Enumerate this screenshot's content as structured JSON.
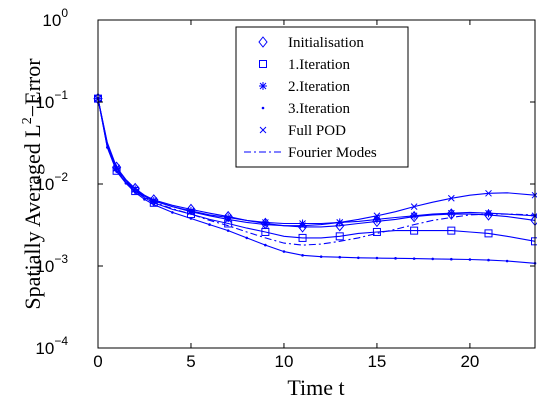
{
  "chart_data": {
    "type": "line",
    "xlabel": "Time t",
    "ylabel": {
      "base": "Spatially Averaged L",
      "sup": "2",
      "rest": "−Error"
    },
    "xlim": [
      0,
      23.5
    ],
    "ylim": [
      0.0001,
      1
    ],
    "yscale": "log",
    "xticks": [
      0,
      5,
      10,
      15,
      20
    ],
    "yticks": [
      {
        "value": 0.0001,
        "base": "10",
        "exp": "−4"
      },
      {
        "value": 0.001,
        "base": "10",
        "exp": "−3"
      },
      {
        "value": 0.01,
        "base": "10",
        "exp": "−2"
      },
      {
        "value": 0.1,
        "base": "10",
        "exp": "−1"
      },
      {
        "value": 1,
        "base": "10",
        "exp": "0"
      }
    ],
    "grid": false,
    "legend_position": "top-center",
    "color": "#0000ff",
    "series": [
      {
        "name": "Initialisation",
        "marker": "diamond",
        "linestyle": "solid",
        "x": [
          0,
          0.5,
          1,
          1.5,
          2,
          2.5,
          3,
          4,
          5,
          6,
          7,
          8,
          9,
          10,
          11,
          12,
          13,
          14,
          15,
          16,
          17,
          18,
          19,
          20,
          21,
          22,
          23.5
        ],
        "y": [
          0.11,
          0.032,
          0.016,
          0.0113,
          0.0088,
          0.0073,
          0.0064,
          0.0055,
          0.0049,
          0.0044,
          0.004,
          0.0036,
          0.0033,
          0.0031,
          0.003,
          0.003,
          0.0031,
          0.0033,
          0.0035,
          0.0037,
          0.004,
          0.0042,
          0.0043,
          0.0043,
          0.0042,
          0.004,
          0.0036
        ]
      },
      {
        "name": "1.Iteration",
        "marker": "square",
        "linestyle": "solid",
        "x": [
          0,
          0.5,
          1,
          1.5,
          2,
          2.5,
          3,
          4,
          5,
          6,
          7,
          8,
          9,
          10,
          11,
          12,
          13,
          14,
          15,
          16,
          17,
          18,
          19,
          20,
          21,
          22,
          23.5
        ],
        "y": [
          0.11,
          0.028,
          0.0145,
          0.0105,
          0.0082,
          0.0068,
          0.0059,
          0.0049,
          0.0043,
          0.0037,
          0.0033,
          0.0029,
          0.0026,
          0.0023,
          0.0022,
          0.0022,
          0.0023,
          0.0025,
          0.0026,
          0.0027,
          0.0027,
          0.0027,
          0.0027,
          0.0026,
          0.0025,
          0.0023,
          0.002
        ]
      },
      {
        "name": "2.Iteration",
        "marker": "star",
        "linestyle": "solid",
        "x": [
          0,
          0.5,
          1,
          1.5,
          2,
          2.5,
          3,
          4,
          5,
          6,
          7,
          8,
          9,
          10,
          11,
          12,
          13,
          14,
          15,
          16,
          17,
          18,
          19,
          20,
          21,
          22,
          23.5
        ],
        "y": [
          0.11,
          0.03,
          0.0155,
          0.011,
          0.0086,
          0.0071,
          0.0062,
          0.0053,
          0.0047,
          0.0042,
          0.0039,
          0.0036,
          0.0034,
          0.0033,
          0.0033,
          0.0033,
          0.0034,
          0.0035,
          0.0037,
          0.0039,
          0.0041,
          0.0043,
          0.0044,
          0.0045,
          0.0044,
          0.0043,
          0.0041
        ]
      },
      {
        "name": "3.Iteration",
        "marker": "dot",
        "linestyle": "solid",
        "x": [
          0,
          0.5,
          1,
          1.5,
          2,
          2.5,
          3,
          4,
          5,
          6,
          7,
          8,
          9,
          10,
          11,
          12,
          13,
          14,
          15,
          16,
          17,
          18,
          19,
          20,
          21,
          22,
          23.5
        ],
        "y": [
          0.11,
          0.028,
          0.0142,
          0.0102,
          0.0079,
          0.0065,
          0.0056,
          0.0045,
          0.0038,
          0.0032,
          0.0027,
          0.0022,
          0.0018,
          0.0015,
          0.00135,
          0.0013,
          0.00128,
          0.00126,
          0.00125,
          0.00124,
          0.00123,
          0.00122,
          0.00121,
          0.0012,
          0.00118,
          0.00115,
          0.00108
        ]
      },
      {
        "name": "Full POD",
        "marker": "x",
        "linestyle": "solid",
        "x": [
          0,
          0.5,
          1,
          1.5,
          2,
          2.5,
          3,
          4,
          5,
          6,
          7,
          8,
          9,
          10,
          11,
          12,
          13,
          14,
          15,
          16,
          17,
          18,
          19,
          20,
          21,
          22,
          23.5
        ],
        "y": [
          0.11,
          0.031,
          0.0158,
          0.0112,
          0.0087,
          0.0072,
          0.0063,
          0.0053,
          0.0046,
          0.0041,
          0.0037,
          0.0034,
          0.0032,
          0.0031,
          0.0031,
          0.0032,
          0.0034,
          0.0037,
          0.0041,
          0.0046,
          0.0053,
          0.006,
          0.0067,
          0.0073,
          0.0077,
          0.0078,
          0.0073
        ]
      },
      {
        "name": "Fourier Modes",
        "marker": "none",
        "linestyle": "dashdot",
        "x": [
          0,
          0.5,
          1,
          1.5,
          2,
          2.5,
          3,
          4,
          5,
          6,
          7,
          8,
          9,
          10,
          11,
          12,
          13,
          14,
          15,
          16,
          17,
          18,
          19,
          20,
          21,
          22,
          23.5
        ],
        "y": [
          0.11,
          0.03,
          0.0152,
          0.0108,
          0.0084,
          0.007,
          0.006,
          0.005,
          0.0043,
          0.0036,
          0.0031,
          0.0026,
          0.0022,
          0.0019,
          0.0018,
          0.00185,
          0.002,
          0.0022,
          0.0025,
          0.0028,
          0.0032,
          0.0036,
          0.0039,
          0.0042,
          0.0043,
          0.0043,
          0.0042
        ]
      }
    ]
  }
}
